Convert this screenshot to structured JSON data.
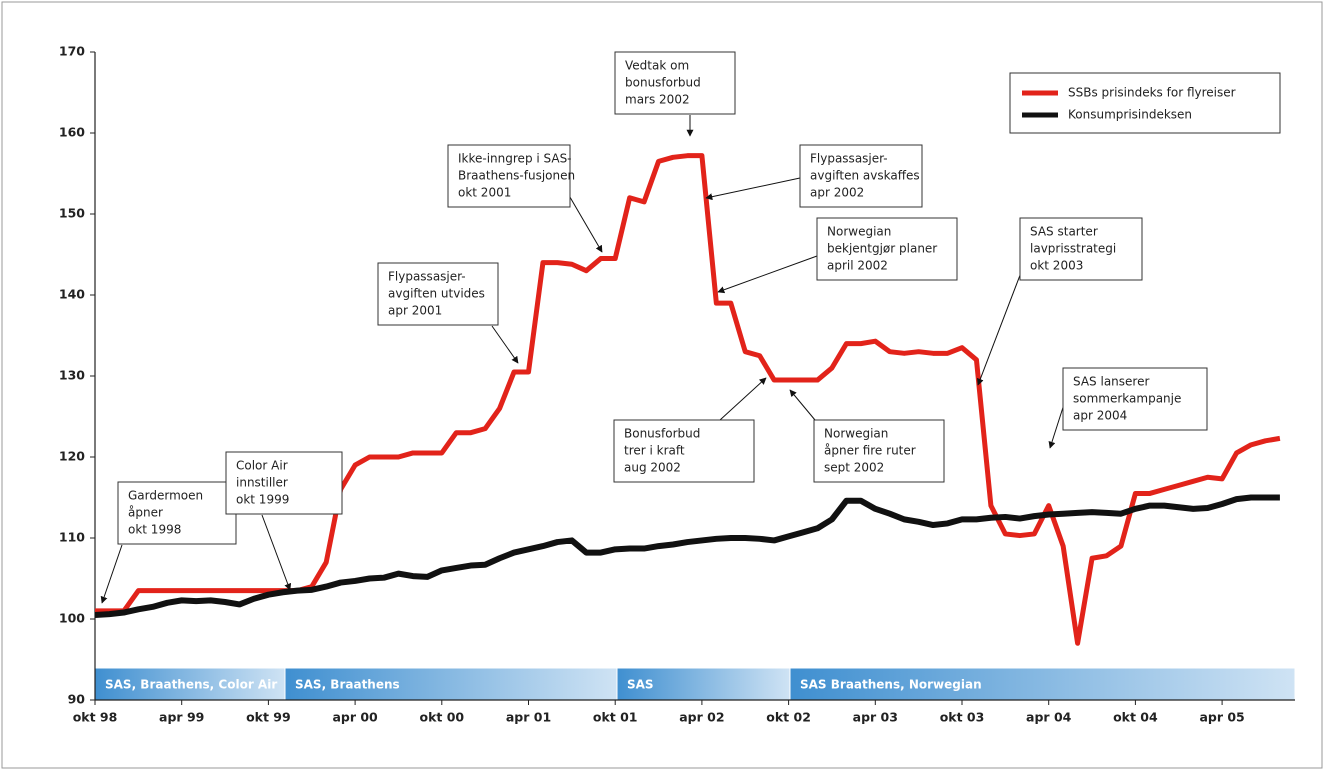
{
  "chart_data": {
    "type": "line",
    "categories": [
      "okt 98",
      null,
      null,
      null,
      null,
      null,
      "apr 99",
      null,
      null,
      null,
      null,
      null,
      "okt 99",
      null,
      null,
      null,
      null,
      null,
      "apr 00",
      null,
      null,
      null,
      null,
      null,
      "okt 00",
      null,
      null,
      null,
      null,
      null,
      "apr 01",
      null,
      null,
      null,
      null,
      null,
      "okt 01",
      null,
      null,
      null,
      null,
      null,
      "apr 02",
      null,
      null,
      null,
      null,
      null,
      "okt 02",
      null,
      null,
      null,
      null,
      null,
      "apr 03",
      null,
      null,
      null,
      null,
      null,
      "okt 03",
      null,
      null,
      null,
      null,
      null,
      "apr 04",
      null,
      null,
      null,
      null,
      null,
      "okt 04",
      null,
      null,
      null,
      null,
      null,
      "apr 05",
      null,
      null,
      null,
      null
    ],
    "series": [
      {
        "name": "SSBs prisindeks for flyreiser",
        "color": "#e2231a",
        "values": [
          101,
          101,
          101,
          103.5,
          103.5,
          103.5,
          103.5,
          103.5,
          103.5,
          103.5,
          103.5,
          103.5,
          103.5,
          103.5,
          103.5,
          104,
          107,
          116,
          119,
          120,
          120,
          120,
          120.5,
          120.5,
          120.5,
          123,
          123,
          123.5,
          126,
          130.5,
          130.5,
          144,
          144,
          143.8,
          143,
          144.5,
          144.5,
          152,
          151.5,
          156.5,
          157,
          157.2,
          157.2,
          139,
          139,
          133,
          132.5,
          129.5,
          129.5,
          129.5,
          129.5,
          131,
          134,
          134,
          134.3,
          133,
          132.8,
          133,
          132.8,
          132.8,
          133.5,
          132,
          114,
          110.5,
          110.3,
          110.5,
          114,
          109,
          97,
          107.5,
          107.8,
          109,
          115.5,
          115.5,
          116,
          116.5,
          117,
          117.5,
          117.3,
          120.5,
          121.5,
          122,
          122.3
        ]
      },
      {
        "name": "Konsumprisindeksen",
        "color": "#111111",
        "values": [
          100.5,
          100.6,
          100.8,
          101.2,
          101.5,
          102,
          102.3,
          102.2,
          102.3,
          102.1,
          101.8,
          102.5,
          103,
          103.3,
          103.5,
          103.6,
          104,
          104.5,
          104.7,
          105,
          105.1,
          105.6,
          105.3,
          105.2,
          106,
          106.3,
          106.6,
          106.7,
          107.5,
          108.2,
          108.6,
          109,
          109.5,
          109.7,
          108.2,
          108.2,
          108.6,
          108.7,
          108.7,
          109,
          109.2,
          109.5,
          109.7,
          109.9,
          110,
          110,
          109.9,
          109.7,
          110.2,
          110.7,
          111.2,
          112.3,
          114.6,
          114.6,
          113.6,
          113,
          112.3,
          112,
          111.6,
          111.8,
          112.3,
          112.3,
          112.5,
          112.6,
          112.4,
          112.7,
          112.9,
          113,
          113.1,
          113.2,
          113.1,
          113,
          113.6,
          114,
          114,
          113.8,
          113.6,
          113.7,
          114.2,
          114.8,
          115,
          115,
          115
        ]
      }
    ],
    "ylim": [
      90,
      170
    ],
    "yticks": [
      90,
      100,
      110,
      120,
      130,
      140,
      150,
      160,
      170
    ],
    "legend": "top-right",
    "periods": [
      "SAS, Braathens, Color Air",
      "SAS, Braathens",
      "SAS",
      "SAS Braathens, Norwegian"
    ],
    "annotations": [
      [
        "Gardermoen",
        "åpner",
        "okt 1998"
      ],
      [
        "Color Air",
        "innstiller",
        "okt 1999"
      ],
      [
        "Flypassasjer-",
        "avgiften utvides",
        "apr 2001"
      ],
      [
        "Ikke-inngrep i  SAS-",
        "Braathens-fusjonen",
        "okt 2001"
      ],
      [
        "Vedtak om",
        "bonusforbud",
        "mars 2002"
      ],
      [
        "Flypassasjer-",
        "avgiften  avskaffes",
        "apr 2002"
      ],
      [
        "Norwegian",
        "bekjentgjør planer",
        "april 2002"
      ],
      [
        "Bonusforbud",
        "trer i kraft",
        "aug 2002"
      ],
      [
        "Norwegian",
        "åpner fire ruter",
        "sept 2002"
      ],
      [
        "SAS starter",
        "lavprisstrategi",
        "okt 2003"
      ],
      [
        "SAS lanserer",
        "sommerkampanje",
        "apr 2004"
      ]
    ]
  }
}
